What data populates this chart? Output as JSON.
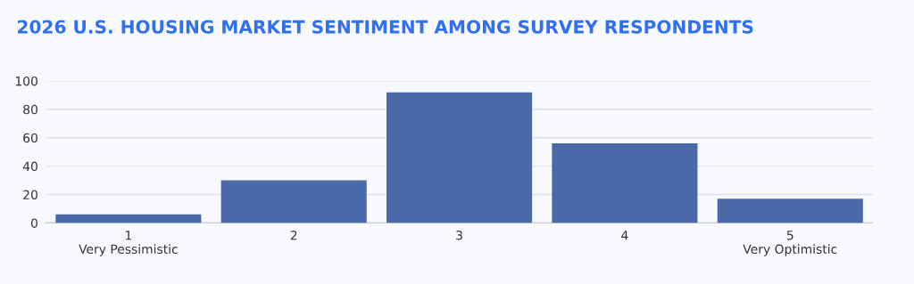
{
  "chart_data": {
    "type": "bar",
    "title": "2026 U.S. HOUSING MARKET SENTIMENT AMONG SURVEY RESPONDENTS",
    "categories": [
      "1\nVery Pessimistic",
      "2",
      "3",
      "4",
      "5\nVery Optimistic"
    ],
    "values": [
      6,
      30,
      92,
      56,
      17
    ],
    "color": "#4a69a8",
    "ylim": [
      0,
      100
    ],
    "yticks": [
      0,
      20,
      40,
      60,
      80,
      100
    ],
    "grid": "y"
  }
}
